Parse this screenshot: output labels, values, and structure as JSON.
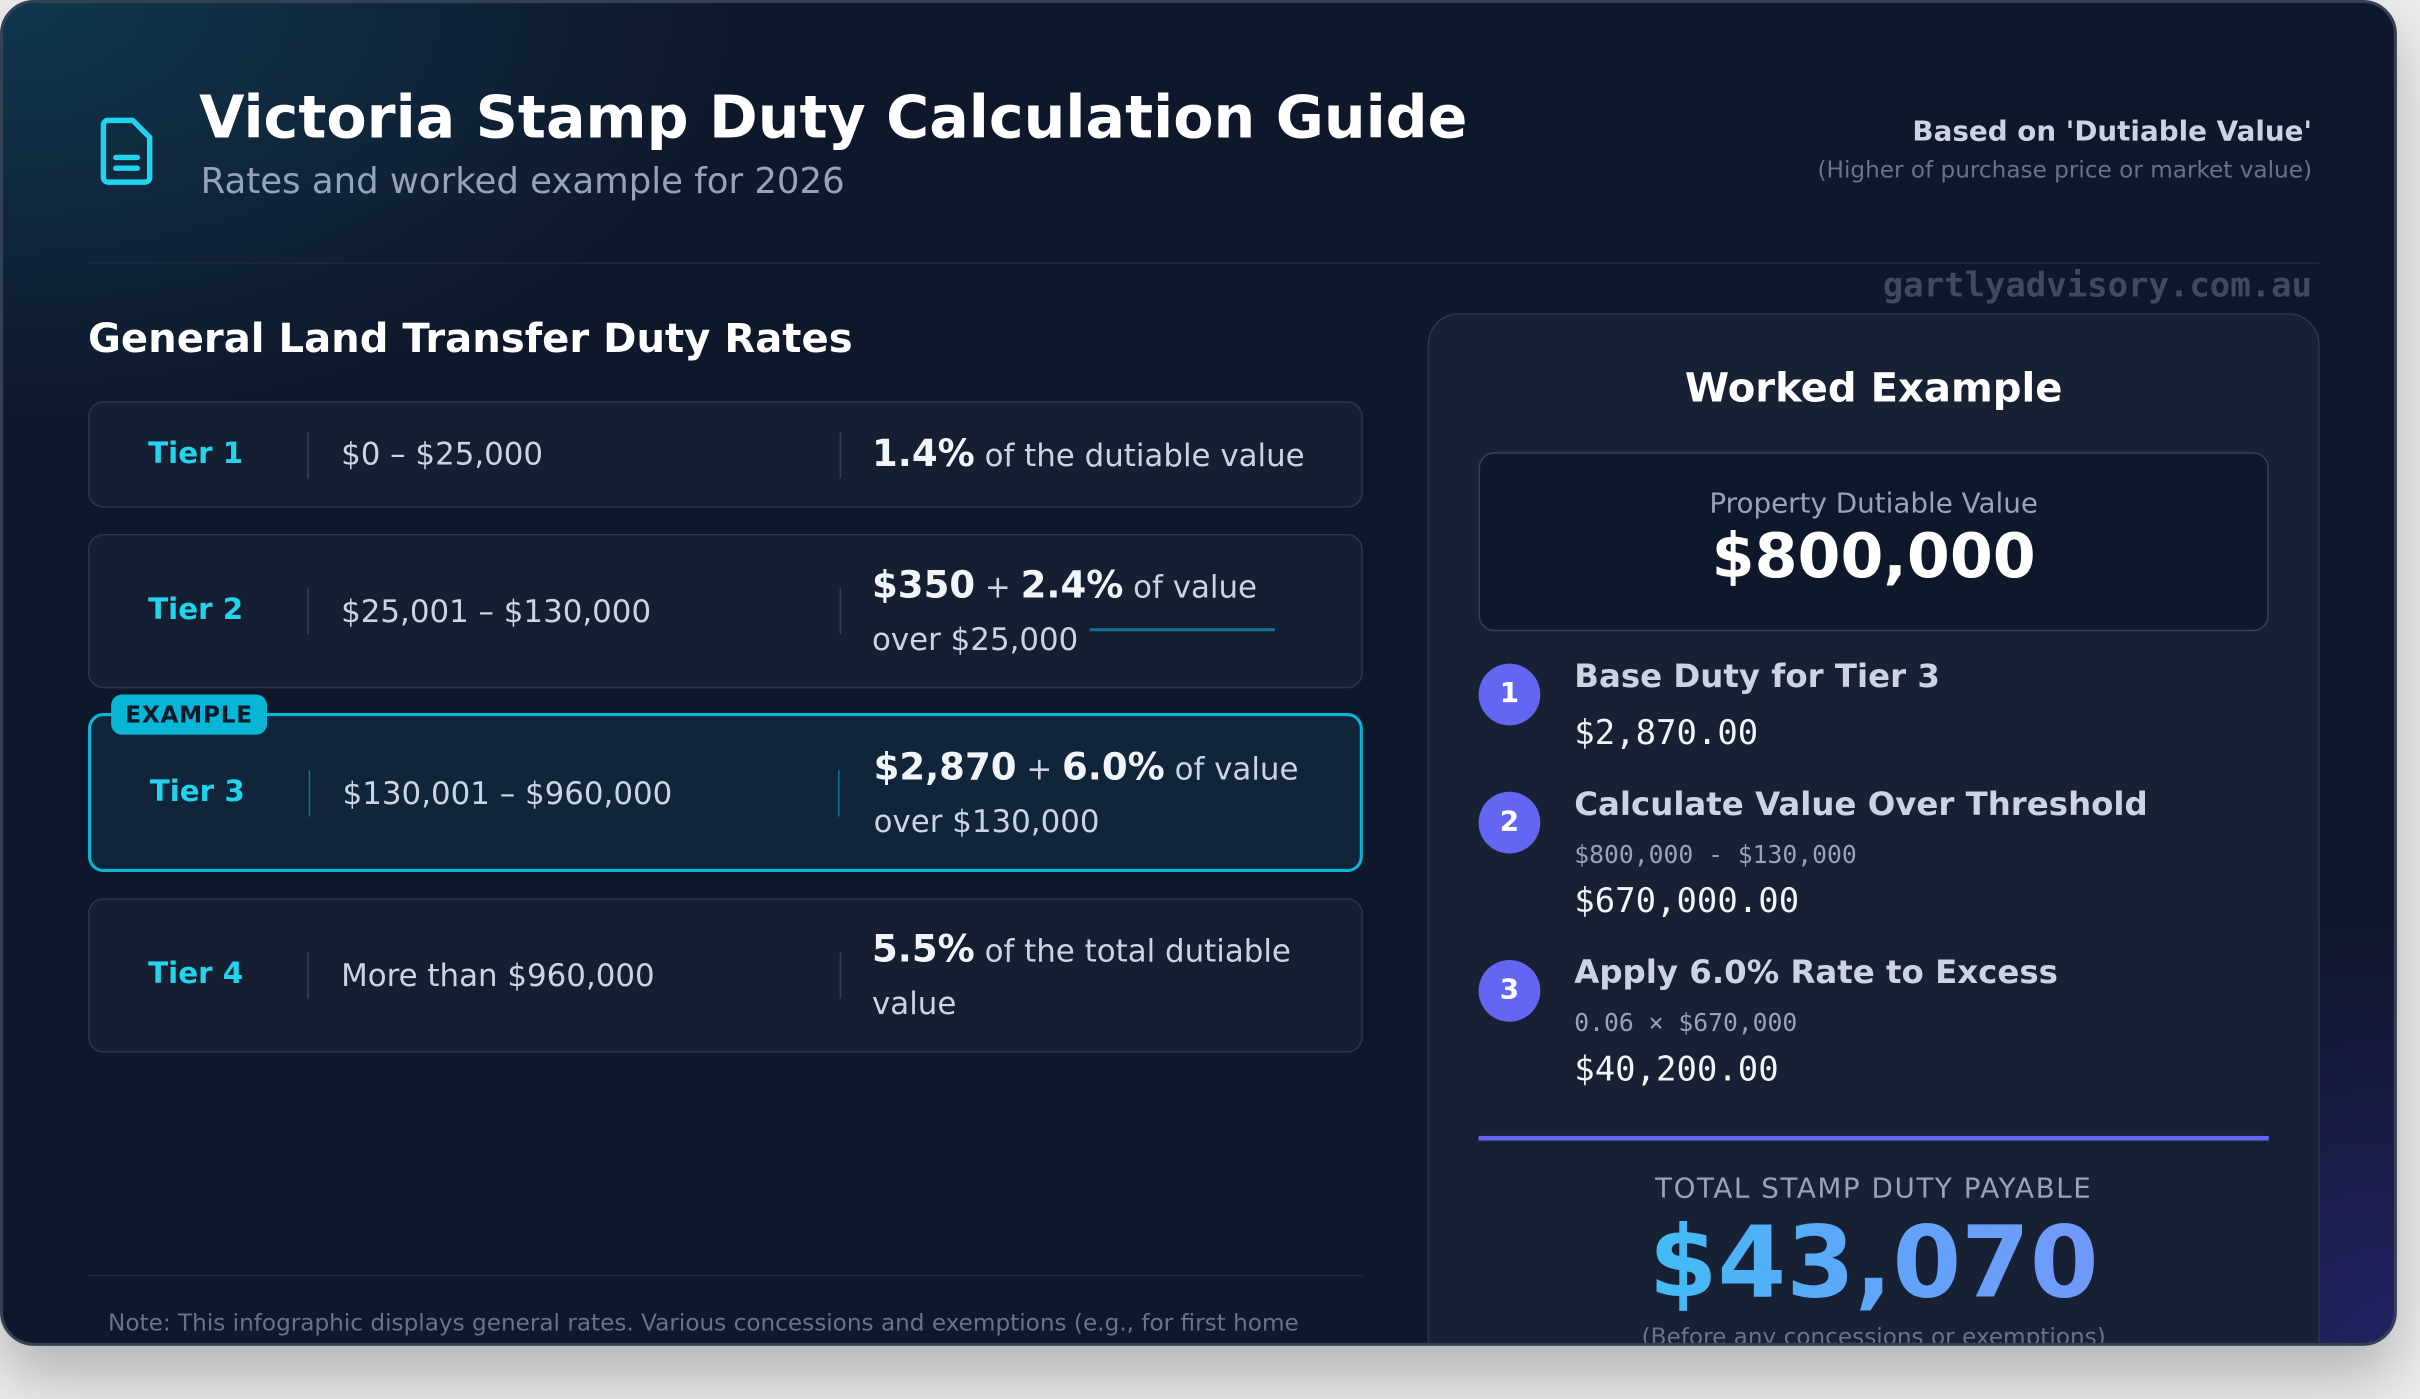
{
  "header": {
    "title": "Victoria Stamp Duty Calculation Guide",
    "subtitle": "Rates and worked example for 2026",
    "icon": "document-icon",
    "basis_title": "Based on 'Dutiable Value'",
    "basis_note": "(Higher of purchase price or market value)"
  },
  "rates": {
    "title": "General Land Transfer Duty Rates",
    "badge": "EXAMPLE",
    "tiers": [
      {
        "label": "Tier 1",
        "range": "$0 – $25,000",
        "rate_bold": "1.4%",
        "rate_bold2": "",
        "rate_text": " of the dutiable value"
      },
      {
        "label": "Tier 2",
        "range": "$25,001 – $130,000",
        "rate_bold": "$350",
        "rate_bold2": "2.4%",
        "rate_text": " of value over $25,000"
      },
      {
        "label": "Tier 3",
        "range": "$130,001 – $960,000",
        "rate_bold": "$2,870",
        "rate_bold2": "6.0%",
        "rate_text": " of value over $130,000"
      },
      {
        "label": "Tier 4",
        "range": "More than $960,000",
        "rate_bold": "5.5%",
        "rate_bold2": "",
        "rate_text": " of the total dutiable value"
      }
    ],
    "plus": " + ",
    "note": "Note: This infographic displays general rates. Various concessions and exemptions (e.g., for first home"
  },
  "example": {
    "title": "Worked Example",
    "value_label": "Property Dutiable Value",
    "value": "$800,000",
    "steps": [
      {
        "num": "1",
        "title": "Base Duty for Tier 3",
        "formula": "",
        "result": "$2,870.00"
      },
      {
        "num": "2",
        "title": "Calculate Value Over Threshold",
        "formula": "$800,000 - $130,000",
        "result": "$670,000.00"
      },
      {
        "num": "3",
        "title": "Apply 6.0% Rate to Excess",
        "formula": "0.06 × $670,000",
        "result": "$40,200.00"
      }
    ],
    "total_label": "TOTAL STAMP DUTY PAYABLE",
    "total": "$43,070",
    "total_note": "(Before any concessions or exemptions)"
  },
  "watermark": "gartlyadvisory.com.au",
  "colors": {
    "accent": "#22d3ee",
    "highlight": "#06b6d4",
    "step": "#6366f1",
    "bg": "#0f172a"
  }
}
